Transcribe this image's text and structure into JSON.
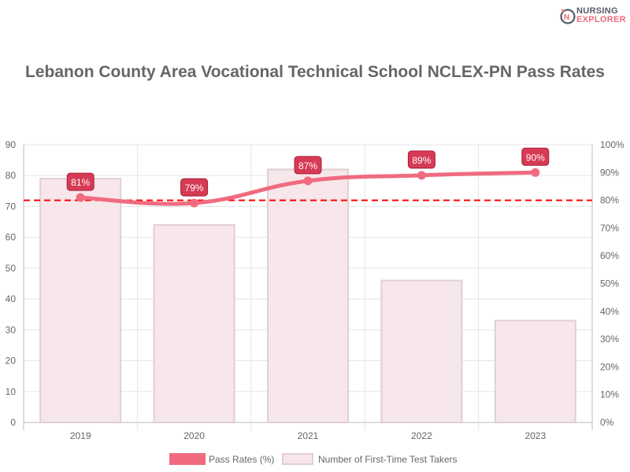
{
  "logo": {
    "line1": "NURSING",
    "line2": "EXPLORER"
  },
  "chart_data": {
    "type": "bar+line",
    "title": "Lebanon County Area Vocational Technical School NCLEX-PN Pass Rates",
    "categories": [
      "2019",
      "2020",
      "2021",
      "2022",
      "2023"
    ],
    "series": [
      {
        "name": "Pass Rates (%)",
        "type": "line",
        "axis": "right",
        "values": [
          81,
          79,
          87,
          89,
          90
        ],
        "color": "#f06b80"
      },
      {
        "name": "Number of First-Time Test Takers",
        "type": "bar",
        "axis": "left",
        "values": [
          79,
          64,
          82,
          46,
          33
        ],
        "color": "#f7e6ea",
        "border": "#e0cfd4"
      }
    ],
    "left_axis": {
      "min": 0,
      "max": 90,
      "ticks": [
        "0",
        "10",
        "20",
        "30",
        "40",
        "50",
        "60",
        "70",
        "80",
        "90"
      ]
    },
    "right_axis": {
      "min": 0,
      "max": 100,
      "ticks": [
        "0%",
        "10%",
        "20%",
        "30%",
        "40%",
        "50%",
        "60%",
        "70%",
        "80%",
        "90%",
        "100%"
      ]
    },
    "reference_line": {
      "value": 80,
      "axis": "right",
      "style": "dashed",
      "color": "#ff0000"
    },
    "data_labels": [
      "81%",
      "79%",
      "87%",
      "89%",
      "90%"
    ],
    "label_color": "#d63a55",
    "grid": true,
    "legend": "bottom"
  }
}
